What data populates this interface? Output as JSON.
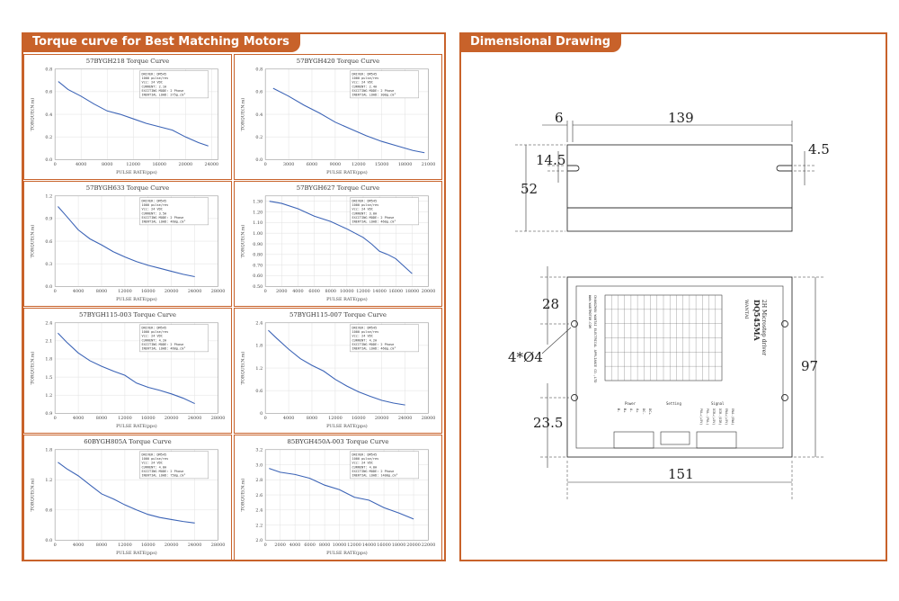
{
  "left_panel": {
    "title": "Torque curve for Best Matching Motors"
  },
  "right_panel": {
    "title": "Dimensional Drawing"
  },
  "chart_data": [
    {
      "type": "line",
      "title": "57BYGH218 Torque Curve",
      "xlabel": "PULSE RATE(pps)",
      "ylabel": "TORQUE(N.m)",
      "xlim": [
        0,
        25000
      ],
      "ylim": [
        0,
        0.8
      ],
      "xticks": [
        0,
        4000,
        8000,
        12000,
        16000,
        20000,
        24000
      ],
      "yticks": [
        0.0,
        0.2,
        0.4,
        0.6,
        0.8
      ],
      "xtick_labels": [
        "0",
        "4000",
        "8000",
        "12000",
        "16000",
        "20000",
        "24000"
      ],
      "ytick_labels": [
        "0.0",
        "0.2",
        "0.4",
        "0.6",
        "0.8"
      ],
      "legend": [
        "DRIVER: DM545",
        "1000 pulse/rev",
        "Vcc: 24 VDC",
        "CURRENT: 2.1A",
        "EXCITING MODE: 2 Phase",
        "INERTIAL LOAD: 275g.cm²"
      ],
      "series": [
        {
          "x": [
            500,
            2000,
            4000,
            6000,
            8000,
            10000,
            12000,
            14000,
            16000,
            18000,
            20000,
            22000,
            23500
          ],
          "y": [
            0.69,
            0.62,
            0.56,
            0.49,
            0.43,
            0.4,
            0.36,
            0.32,
            0.29,
            0.26,
            0.2,
            0.15,
            0.12
          ]
        }
      ]
    },
    {
      "type": "line",
      "title": "57BYGH420 Torque Curve",
      "xlabel": "PULSE RATE(pps)",
      "ylabel": "TORQUE(N.m)",
      "xlim": [
        0,
        21000
      ],
      "ylim": [
        0,
        0.8
      ],
      "xticks": [
        0,
        3000,
        6000,
        9000,
        12000,
        15000,
        18000,
        21000
      ],
      "yticks": [
        0.0,
        0.2,
        0.4,
        0.6,
        0.8
      ],
      "xtick_labels": [
        "0",
        "3000",
        "6000",
        "9000",
        "12000",
        "15000",
        "18000",
        "21000"
      ],
      "ytick_labels": [
        "0.0",
        "0.2",
        "0.4",
        "0.6",
        "0.8"
      ],
      "legend": [
        "DRIVER: DM545",
        "1000 pulse/rev",
        "Vcc: 24 VDC",
        "CURRENT: 2.4A",
        "EXCITING MODE: 2 Phase",
        "INERTIAL LOAD: 300g.cm²"
      ],
      "series": [
        {
          "x": [
            1000,
            3000,
            5000,
            7000,
            9000,
            11000,
            13000,
            15000,
            17000,
            19000,
            20500
          ],
          "y": [
            0.63,
            0.56,
            0.48,
            0.41,
            0.33,
            0.27,
            0.21,
            0.16,
            0.12,
            0.08,
            0.06
          ]
        }
      ]
    },
    {
      "type": "line",
      "title": "57BYGH633 Torque Curve",
      "xlabel": "PULSE RATE(pps)",
      "ylabel": "TORQUE(N.m)",
      "xlim": [
        0,
        28000
      ],
      "ylim": [
        0,
        1.2
      ],
      "xticks": [
        0,
        4000,
        8000,
        12000,
        16000,
        20000,
        24000,
        28000
      ],
      "yticks": [
        0.0,
        0.3,
        0.6,
        0.9,
        1.2
      ],
      "xtick_labels": [
        "0",
        "4000",
        "8000",
        "12000",
        "16000",
        "20000",
        "24000",
        "28000"
      ],
      "ytick_labels": [
        "0.0",
        "0.3",
        "0.6",
        "0.9",
        "1.2"
      ],
      "legend": [
        "DRIVER: DM545",
        "1000 pulse/rev",
        "Vcc: 24 VDC",
        "CURRENT: 3.5A",
        "EXCITING MODE: 2 Phase",
        "INERTIAL LOAD: 460g.cm²"
      ],
      "series": [
        {
          "x": [
            500,
            2000,
            4000,
            6000,
            8000,
            10000,
            12000,
            14000,
            16000,
            18000,
            20000,
            22000,
            24000
          ],
          "y": [
            1.06,
            0.93,
            0.75,
            0.63,
            0.55,
            0.46,
            0.39,
            0.33,
            0.28,
            0.24,
            0.2,
            0.16,
            0.13
          ]
        }
      ]
    },
    {
      "type": "line",
      "title": "57BYGH627 Torque Curve",
      "xlabel": "PULSE RATE(pps)",
      "ylabel": "TORQUE(N.m)",
      "xlim": [
        0,
        20000
      ],
      "ylim": [
        0.5,
        1.35
      ],
      "xticks": [
        0,
        2000,
        4000,
        6000,
        8000,
        10000,
        12000,
        14000,
        16000,
        18000,
        20000
      ],
      "yticks": [
        0.5,
        0.6,
        0.7,
        0.8,
        0.9,
        1.0,
        1.1,
        1.2,
        1.3
      ],
      "xtick_labels": [
        "0",
        "2000",
        "4000",
        "6000",
        "8000",
        "10000",
        "12000",
        "14000",
        "16000",
        "18000",
        "20000"
      ],
      "ytick_labels": [
        "0.50",
        "0.60",
        "0.70",
        "0.80",
        "0.90",
        "1.00",
        "1.10",
        "1.20",
        "1.30"
      ],
      "legend": [
        "DRIVER: DM545",
        "1000 pulse/rev",
        "Vcc: 24 VDC",
        "CURRENT: 3.0A",
        "EXCITING MODE: 2 Phase",
        "INERTIAL LOAD: 460g.cm²"
      ],
      "series": [
        {
          "x": [
            500,
            2000,
            4000,
            6000,
            8000,
            10000,
            12000,
            13000,
            14000,
            15000,
            16000,
            17000,
            18000
          ],
          "y": [
            1.3,
            1.28,
            1.23,
            1.16,
            1.11,
            1.04,
            0.96,
            0.9,
            0.83,
            0.8,
            0.76,
            0.69,
            0.62
          ]
        }
      ]
    },
    {
      "type": "line",
      "title": "57BYGH115-003 Torque Curve",
      "xlabel": "PULSE RATE(pps)",
      "ylabel": "TORQUE(N.m)",
      "xlim": [
        0,
        28000
      ],
      "ylim": [
        0.9,
        2.4
      ],
      "xticks": [
        0,
        4000,
        8000,
        12000,
        16000,
        20000,
        24000,
        28000
      ],
      "yticks": [
        0.9,
        1.2,
        1.5,
        1.8,
        2.1,
        2.4
      ],
      "xtick_labels": [
        "0",
        "4000",
        "8000",
        "12000",
        "16000",
        "20000",
        "24000",
        "28000"
      ],
      "ytick_labels": [
        "0.9",
        "1.2",
        "1.5",
        "1.8",
        "2.1",
        "2.4"
      ],
      "legend": [
        "DRIVER: DM545",
        "1000 pulse/rev",
        "Vcc: 24 VDC",
        "CURRENT: 4.2A",
        "EXCITING MODE: 2 Phase",
        "INERTIAL LOAD: 460g.cm²"
      ],
      "series": [
        {
          "x": [
            500,
            2000,
            4000,
            6000,
            8000,
            10000,
            12000,
            14000,
            16000,
            18000,
            20000,
            22000,
            24000
          ],
          "y": [
            2.23,
            2.08,
            1.9,
            1.77,
            1.68,
            1.6,
            1.53,
            1.4,
            1.33,
            1.28,
            1.22,
            1.15,
            1.06
          ]
        }
      ]
    },
    {
      "type": "line",
      "title": "57BYGH115-007 Torque Curve",
      "xlabel": "PULSE RATE(pps)",
      "ylabel": "TORQUE(N.m)",
      "xlim": [
        0,
        28000
      ],
      "ylim": [
        0,
        2.4
      ],
      "xticks": [
        0,
        4000,
        8000,
        12000,
        16000,
        20000,
        24000,
        28000
      ],
      "yticks": [
        0.0,
        0.6,
        1.2,
        1.8,
        2.4
      ],
      "xtick_labels": [
        "0",
        "4000",
        "8000",
        "12000",
        "16000",
        "20000",
        "24000",
        "28000"
      ],
      "ytick_labels": [
        "0",
        "0.6",
        "1.2",
        "1.8",
        "2.4"
      ],
      "legend": [
        "DRIVER: DM545",
        "1000 pulse/rev",
        "Vcc: 24 VDC",
        "CURRENT: 4.2A",
        "EXCITING MODE: 2 Phase",
        "INERTIAL LOAD: 460g.cm²"
      ],
      "series": [
        {
          "x": [
            500,
            2000,
            4000,
            6000,
            8000,
            10000,
            12000,
            14000,
            16000,
            18000,
            20000,
            22000,
            24000
          ],
          "y": [
            2.2,
            1.98,
            1.7,
            1.45,
            1.27,
            1.12,
            0.9,
            0.72,
            0.57,
            0.45,
            0.34,
            0.27,
            0.22
          ]
        }
      ]
    },
    {
      "type": "line",
      "title": "60BYGH805A Torque Curve",
      "xlabel": "PULSE RATE(pps)",
      "ylabel": "TORQUE(N.m)",
      "xlim": [
        0,
        28000
      ],
      "ylim": [
        0,
        1.8
      ],
      "xticks": [
        0,
        4000,
        8000,
        12000,
        16000,
        20000,
        24000,
        28000
      ],
      "yticks": [
        0.0,
        0.6,
        1.2,
        1.8
      ],
      "xtick_labels": [
        "0",
        "4000",
        "8000",
        "12000",
        "16000",
        "20000",
        "24000",
        "28000"
      ],
      "ytick_labels": [
        "0.0",
        "0.6",
        "1.2",
        "1.8"
      ],
      "legend": [
        "DRIVER: DM545",
        "1000 pulse/rev",
        "Vcc: 24 VDC",
        "CURRENT: 4.0A",
        "EXCITING MODE: 2 Phase",
        "INERTIAL LOAD: 750g.cm²"
      ],
      "series": [
        {
          "x": [
            500,
            2000,
            4000,
            6000,
            8000,
            10000,
            12000,
            14000,
            16000,
            18000,
            20000,
            22000,
            24000
          ],
          "y": [
            1.55,
            1.42,
            1.28,
            1.1,
            0.92,
            0.82,
            0.7,
            0.6,
            0.51,
            0.45,
            0.41,
            0.37,
            0.34
          ]
        }
      ]
    },
    {
      "type": "line",
      "title": "85BYGH450A-003 Torque Curve",
      "xlabel": "PULSE RATE(pps)",
      "ylabel": "TORQUE(N.m)",
      "xlim": [
        0,
        22000
      ],
      "ylim": [
        2.0,
        3.2
      ],
      "xticks": [
        0,
        2000,
        4000,
        6000,
        8000,
        10000,
        12000,
        14000,
        16000,
        18000,
        20000,
        22000
      ],
      "yticks": [
        2.0,
        2.2,
        2.4,
        2.6,
        2.8,
        3.0,
        3.2
      ],
      "xtick_labels": [
        "0",
        "2000",
        "4000",
        "6000",
        "8000",
        "10000",
        "12000",
        "14000",
        "16000",
        "18000",
        "20000",
        "22000"
      ],
      "ytick_labels": [
        "2.0",
        "2.2",
        "2.4",
        "2.6",
        "2.8",
        "3.0",
        "3.2"
      ],
      "legend": [
        "DRIVER: DM545",
        "1000 pulse/rev",
        "Vcc: 24 VDC",
        "CURRENT: 4.0A",
        "EXCITING MODE: 2 Phase",
        "INERTIAL LOAD: 1400g.cm²"
      ],
      "series": [
        {
          "x": [
            500,
            2000,
            4000,
            6000,
            8000,
            10000,
            12000,
            14000,
            16000,
            18000,
            20000
          ],
          "y": [
            2.95,
            2.9,
            2.87,
            2.82,
            2.73,
            2.67,
            2.57,
            2.53,
            2.43,
            2.36,
            2.28
          ]
        }
      ]
    }
  ],
  "drawing": {
    "dims": {
      "d6": "6",
      "d139": "139",
      "d14_5": "14.5",
      "d4_5": "4.5",
      "d52": "52",
      "d28": "28",
      "d97": "97",
      "d4x4": "4*Ø4",
      "d23_5": "23.5",
      "d151": "151"
    },
    "driver": {
      "model": "DQ545MA",
      "subtitle": "2H Microstep driver",
      "brand": "WANTAI",
      "company": "CHANGZHOU WANTAI ELECTRICAL APPLIANCE CO.,LTD",
      "website": "WWW.WANTMOTOR.COM",
      "power_label": "Power",
      "setting_label": "Setting",
      "signal_label": "Signal",
      "power_pins": [
        "B-",
        "B+",
        "A-",
        "A+",
        "DC-",
        "DC+"
      ],
      "signal_pins": [
        "PUL+(+5V)",
        "PUL-(PUL)",
        "DIR+(+5V)",
        "DIR-(DIR)",
        "ENA+(+5V)",
        "ENA-(ENA)"
      ]
    }
  }
}
